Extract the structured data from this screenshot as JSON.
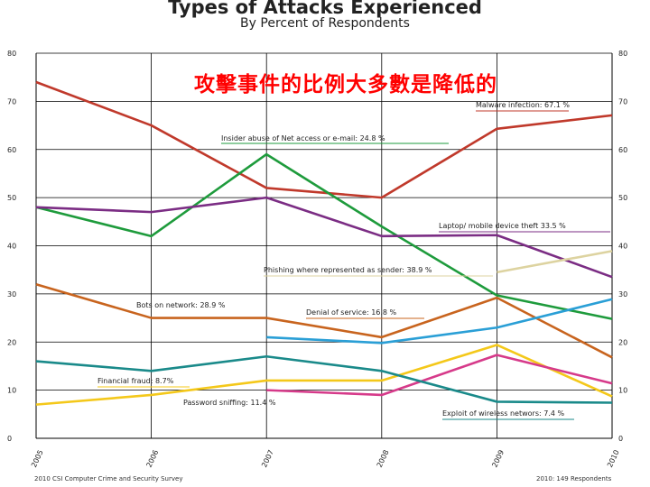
{
  "chart_data": {
    "type": "line",
    "title": "Types of Attacks Experienced",
    "subtitle": "By Percent of Respondents",
    "x": [
      "2005",
      "2006",
      "2007",
      "2008",
      "2009",
      "2010"
    ],
    "ylim": [
      0,
      80
    ],
    "yticks": [
      0,
      10,
      20,
      30,
      40,
      50,
      60,
      70,
      80
    ],
    "grid": true,
    "series": [
      {
        "name": "Malware infection:",
        "value_label": "67.1 %",
        "color": "#c0392b",
        "values": [
          74,
          65,
          52,
          50,
          64.3,
          67.1
        ]
      },
      {
        "name": "Insider abuse of Net access or e-mail:",
        "value_label": "24.8 %",
        "color": "#1e9b3c",
        "values": [
          48,
          42,
          59,
          44,
          29.7,
          24.8
        ]
      },
      {
        "name": "Laptop/ mobile device theft",
        "value_label": "33.5 %",
        "color": "#7b2d84",
        "values": [
          48,
          47,
          50,
          42,
          42.2,
          33.5
        ]
      },
      {
        "name": "Phishing where represented as sender:",
        "value_label": "38.9 %",
        "color": "#ddd3a0",
        "values": [
          null,
          null,
          null,
          null,
          34.5,
          38.9
        ]
      },
      {
        "name": "Denial of service:",
        "value_label": "16.8 %",
        "color": "#c8641e",
        "values": [
          32,
          25,
          25,
          21,
          29.2,
          16.8
        ]
      },
      {
        "name": "Bots on network:",
        "value_label": "28.9 %",
        "color": "#2a9fd6",
        "values": [
          null,
          null,
          21,
          19.8,
          23,
          28.9
        ]
      },
      {
        "name": "Financial fraud:",
        "value_label": "8.7%",
        "color": "#f4c81a",
        "values": [
          7,
          9,
          12,
          12,
          19.4,
          8.7
        ]
      },
      {
        "name": "Password sniffing:",
        "value_label": "11.4 %",
        "color": "#d63a8a",
        "values": [
          null,
          null,
          10,
          9,
          17.3,
          11.4
        ]
      },
      {
        "name": "Exploit of wireless networs:",
        "value_label": "7.4 %",
        "color": "#1a8a8a",
        "values": [
          16,
          14,
          17,
          14,
          7.6,
          7.4
        ]
      }
    ]
  },
  "overlay_text": "攻擊事件的比例大多數是降低的",
  "footer_left": "2010 CSI Computer Crime and Security Survey",
  "footer_right": "2010: 149 Respondents"
}
